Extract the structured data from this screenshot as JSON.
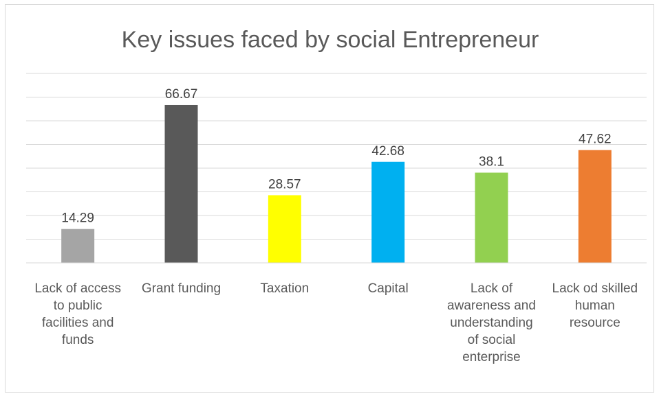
{
  "chart_data": {
    "type": "bar",
    "title": "Key issues faced by social Entrepreneur",
    "categories": [
      "Lack of access to public facilities and funds",
      "Grant funding",
      "Taxation",
      "Capital",
      "Lack of awareness and understanding of social enterprise",
      "Lack od skilled human resource"
    ],
    "category_lines": [
      [
        "Lack of access",
        "to public",
        "facilities and",
        "funds"
      ],
      [
        "Grant funding"
      ],
      [
        "Taxation"
      ],
      [
        "Capital"
      ],
      [
        "Lack of",
        "awareness and",
        "understanding",
        "of social",
        "enterprise"
      ],
      [
        "Lack od skilled",
        "human",
        "resource"
      ]
    ],
    "values": [
      14.29,
      66.67,
      28.57,
      42.68,
      38.1,
      47.62
    ],
    "value_labels": [
      "14.29",
      "66.67",
      "28.57",
      "42.68",
      "38.1",
      "47.62"
    ],
    "colors": [
      "#a5a5a5",
      "#595959",
      "#ffff00",
      "#00b0f0",
      "#92d050",
      "#ed7d31"
    ],
    "ylim": [
      0,
      80
    ],
    "grid": true,
    "legend": "none"
  }
}
